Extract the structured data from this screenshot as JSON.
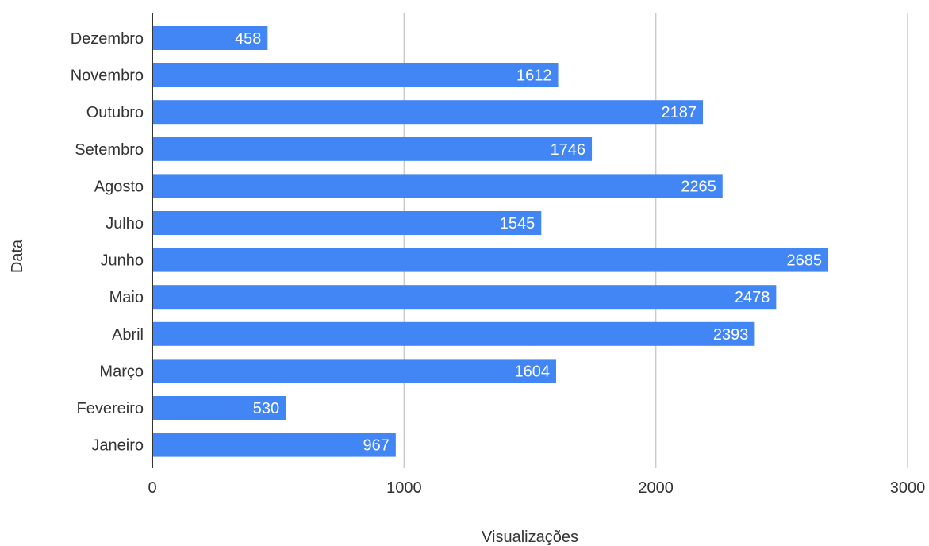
{
  "chart_data": {
    "type": "bar",
    "orientation": "horizontal",
    "categories": [
      "Dezembro",
      "Novembro",
      "Outubro",
      "Setembro",
      "Agosto",
      "Julho",
      "Junho",
      "Maio",
      "Abril",
      "Março",
      "Fevereiro",
      "Janeiro"
    ],
    "series": [
      {
        "values": [
          458,
          1612,
          2187,
          1746,
          2265,
          1545,
          2685,
          2478,
          2393,
          1604,
          530,
          967
        ],
        "color": "#4285f4"
      }
    ],
    "xlabel": "Visualizações",
    "ylabel": "Data",
    "xlim": [
      0,
      3000
    ],
    "xticks": [
      "0",
      "1000",
      "2000",
      "3000"
    ],
    "xtick_values": [
      0,
      1000,
      2000,
      3000
    ],
    "grid": "vertical",
    "data_labels": "inside-end",
    "colors": {
      "bar": "#4285f4",
      "data_label": "#ffffff",
      "text": "#333333",
      "gridline": "#cccccc"
    }
  }
}
